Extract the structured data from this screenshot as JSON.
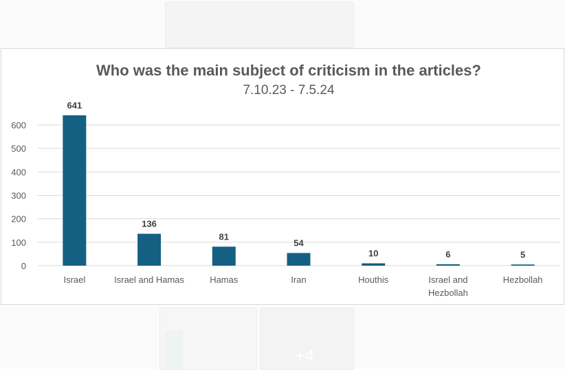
{
  "background": {
    "ghost_text": "+4"
  },
  "chart_data": {
    "type": "bar",
    "title": "Who was the main subject of criticism in the articles?",
    "subtitle": "7.10.23 - 7.5.24",
    "categories": [
      "Israel",
      "Israel and Hamas",
      "Hamas",
      "Iran",
      "Houthis",
      "Israel and Hezbollah",
      "Hezbollah"
    ],
    "values": [
      641,
      136,
      81,
      54,
      10,
      6,
      5
    ],
    "ylim": [
      0,
      600
    ],
    "yticks": [
      0,
      100,
      200,
      300,
      400,
      500,
      600
    ],
    "xlabel": "",
    "ylabel": "",
    "grid": true,
    "legend": "none",
    "bar_color": "#156082"
  }
}
